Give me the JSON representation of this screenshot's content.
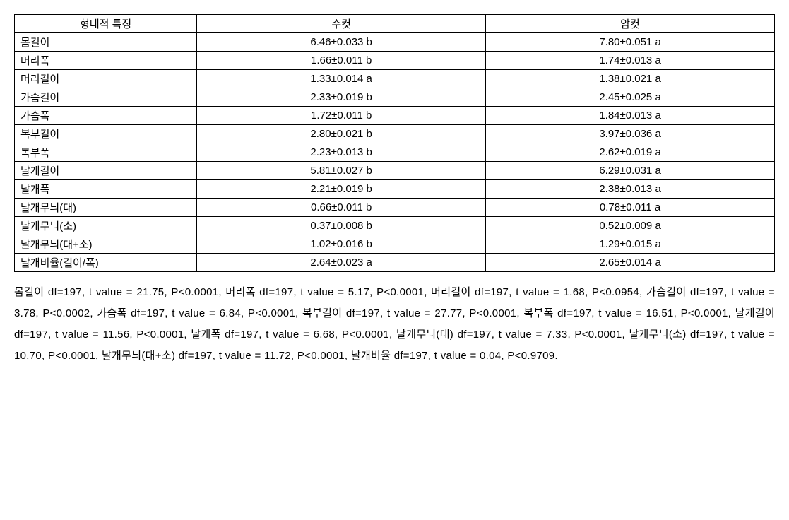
{
  "table": {
    "columns": [
      "형태적 특징",
      "수컷",
      "암컷"
    ],
    "rows": [
      {
        "label": "몸길이",
        "male": "6.46±0.033 b",
        "female": "7.80±0.051 a"
      },
      {
        "label": "머리폭",
        "male": "1.66±0.011 b",
        "female": "1.74±0.013 a"
      },
      {
        "label": "머리길이",
        "male": "1.33±0.014 a",
        "female": "1.38±0.021 a"
      },
      {
        "label": "가슴길이",
        "male": "2.33±0.019 b",
        "female": "2.45±0.025 a"
      },
      {
        "label": "가슴폭",
        "male": "1.72±0.011 b",
        "female": "1.84±0.013 a"
      },
      {
        "label": "복부길이",
        "male": "2.80±0.021 b",
        "female": "3.97±0.036 a"
      },
      {
        "label": "복부폭",
        "male": "2.23±0.013 b",
        "female": "2.62±0.019 a"
      },
      {
        "label": "날개길이",
        "male": "5.81±0.027 b",
        "female": "6.29±0.031 a"
      },
      {
        "label": "날개폭",
        "male": "2.21±0.019 b",
        "female": "2.38±0.013 a"
      },
      {
        "label": "날개무늬(대)",
        "male": "0.66±0.011 b",
        "female": "0.78±0.011 a"
      },
      {
        "label": "날개무늬(소)",
        "male": "0.37±0.008 b",
        "female": "0.52±0.009 a"
      },
      {
        "label": "날개무늬(대+소)",
        "male": "1.02±0.016 b",
        "female": "1.29±0.015 a"
      },
      {
        "label": "날개비율(길이/폭)",
        "male": "2.64±0.023 a",
        "female": "2.65±0.014 a"
      }
    ]
  },
  "notes_text": "몸길이 df=197, t value = 21.75, P<0.0001, 머리폭 df=197, t value = 5.17, P<0.0001, 머리길이 df=197, t value = 1.68, P<0.0954, 가슴길이 df=197, t value = 3.78, P<0.0002, 가슴폭 df=197, t value = 6.84, P<0.0001, 복부길이 df=197, t value = 27.77, P<0.0001, 복부폭 df=197, t value = 16.51, P<0.0001, 날개길이 df=197, t value = 11.56, P<0.0001, 날개폭 df=197, t value = 6.68, P<0.0001, 날개무늬(대) df=197, t value = 7.33, P<0.0001, 날개무늬(소) df=197, t value = 10.70, P<0.0001, 날개무늬(대+소) df=197, t value = 11.72, P<0.0001, 날개비율 df=197, t value = 0.04, P<0.9709.",
  "styling": {
    "font_family": "Malgun Gothic",
    "font_size_pt": 11,
    "border_color": "#000000",
    "background_color": "#ffffff",
    "text_color": "#000000",
    "column_widths_pct": [
      24,
      38,
      38
    ],
    "header_align": "center",
    "label_col_align": "left",
    "value_col_align": "center",
    "notes_line_height": 2.0,
    "notes_align": "justify"
  }
}
